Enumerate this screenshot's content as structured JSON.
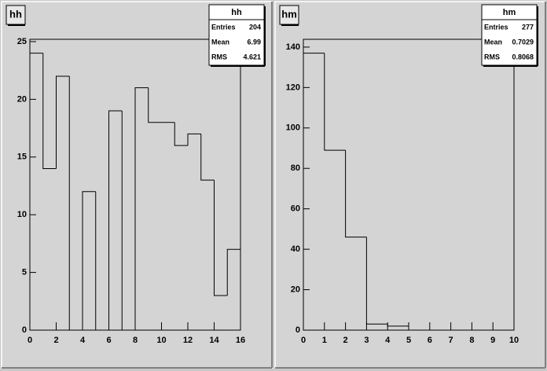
{
  "chart_data": [
    {
      "type": "histogram",
      "title": "hh",
      "bins": [
        0,
        1,
        2,
        3,
        4,
        5,
        6,
        7,
        8,
        9,
        10,
        11,
        12,
        13,
        14,
        15,
        16
      ],
      "values": [
        24,
        14,
        22,
        0,
        12,
        0,
        19,
        0,
        21,
        18,
        18,
        16,
        17,
        13,
        3,
        7
      ],
      "xlim": [
        0,
        16
      ],
      "ylim": [
        0,
        25.2
      ],
      "xticks": [
        0,
        2,
        4,
        6,
        8,
        10,
        12,
        14,
        16
      ],
      "yticks": [
        0,
        5,
        10,
        15,
        20,
        25
      ],
      "color": "#000000",
      "stats": [
        {
          "label": "Entries",
          "value": 204
        },
        {
          "label": "Mean",
          "value": 6.99
        },
        {
          "label": "RMS",
          "value": 4.621
        }
      ]
    },
    {
      "type": "histogram",
      "title": "hm",
      "bins": [
        0,
        1,
        2,
        3,
        4,
        5,
        6,
        7,
        8,
        9,
        10
      ],
      "values": [
        137,
        89,
        46,
        3,
        2,
        0,
        0,
        0,
        0,
        0
      ],
      "xlim": [
        0,
        10
      ],
      "ylim": [
        0,
        143.85
      ],
      "xticks": [
        0,
        1,
        2,
        3,
        4,
        5,
        6,
        7,
        8,
        9,
        10
      ],
      "yticks": [
        0,
        20,
        40,
        60,
        80,
        100,
        120,
        140
      ],
      "color": "#000000",
      "stats": [
        {
          "label": "Entries",
          "value": 277
        },
        {
          "label": "Mean",
          "value": 0.7029
        },
        {
          "label": "RMS",
          "value": 0.8068
        }
      ]
    }
  ]
}
